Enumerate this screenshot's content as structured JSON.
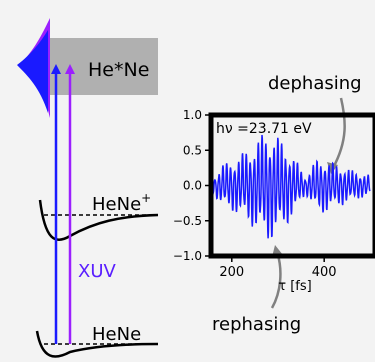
{
  "energy_diagram": {
    "excited_label": "He*Ne",
    "ion_label": "HeNe",
    "ion_charge": "+",
    "ground_label": "HeNe",
    "xuv_label": "XUV",
    "colors": {
      "blue": "#1a1aff",
      "violet": "#9b1fff",
      "xuv_text": "#5a1fff",
      "band": "#b0b0b0"
    }
  },
  "annotations": {
    "dephasing": "dephasing",
    "rephasing": "rephasing"
  },
  "chart_data": {
    "type": "line",
    "annotation": "hν =23.71 eV",
    "xlabel": "τ [fs]",
    "ylabel": "",
    "x_ticks": [
      200,
      400
    ],
    "y_ticks": [
      -1.0,
      -0.5,
      0.0,
      0.5,
      1.0
    ],
    "x_tick_labels": [
      "200",
      "400"
    ],
    "y_tick_labels": [
      "−1.0",
      "−0.5",
      "0.0",
      "0.5",
      "1.0"
    ],
    "xlim": [
      155,
      510
    ],
    "ylim": [
      -1.0,
      1.0
    ],
    "series": [
      {
        "color": "#1a1aff",
        "carrier_period_fs": 8.5,
        "x": [
          158,
          180,
          210,
          240,
          260,
          280,
          300,
          320,
          340,
          360,
          380,
          400,
          420,
          440,
          460,
          480,
          500
        ],
        "values": [
          0.1,
          0.3,
          0.4,
          0.55,
          0.7,
          0.8,
          0.7,
          0.55,
          0.35,
          0.12,
          0.35,
          0.4,
          0.32,
          0.28,
          0.22,
          0.18,
          0.15
        ]
      }
    ]
  }
}
